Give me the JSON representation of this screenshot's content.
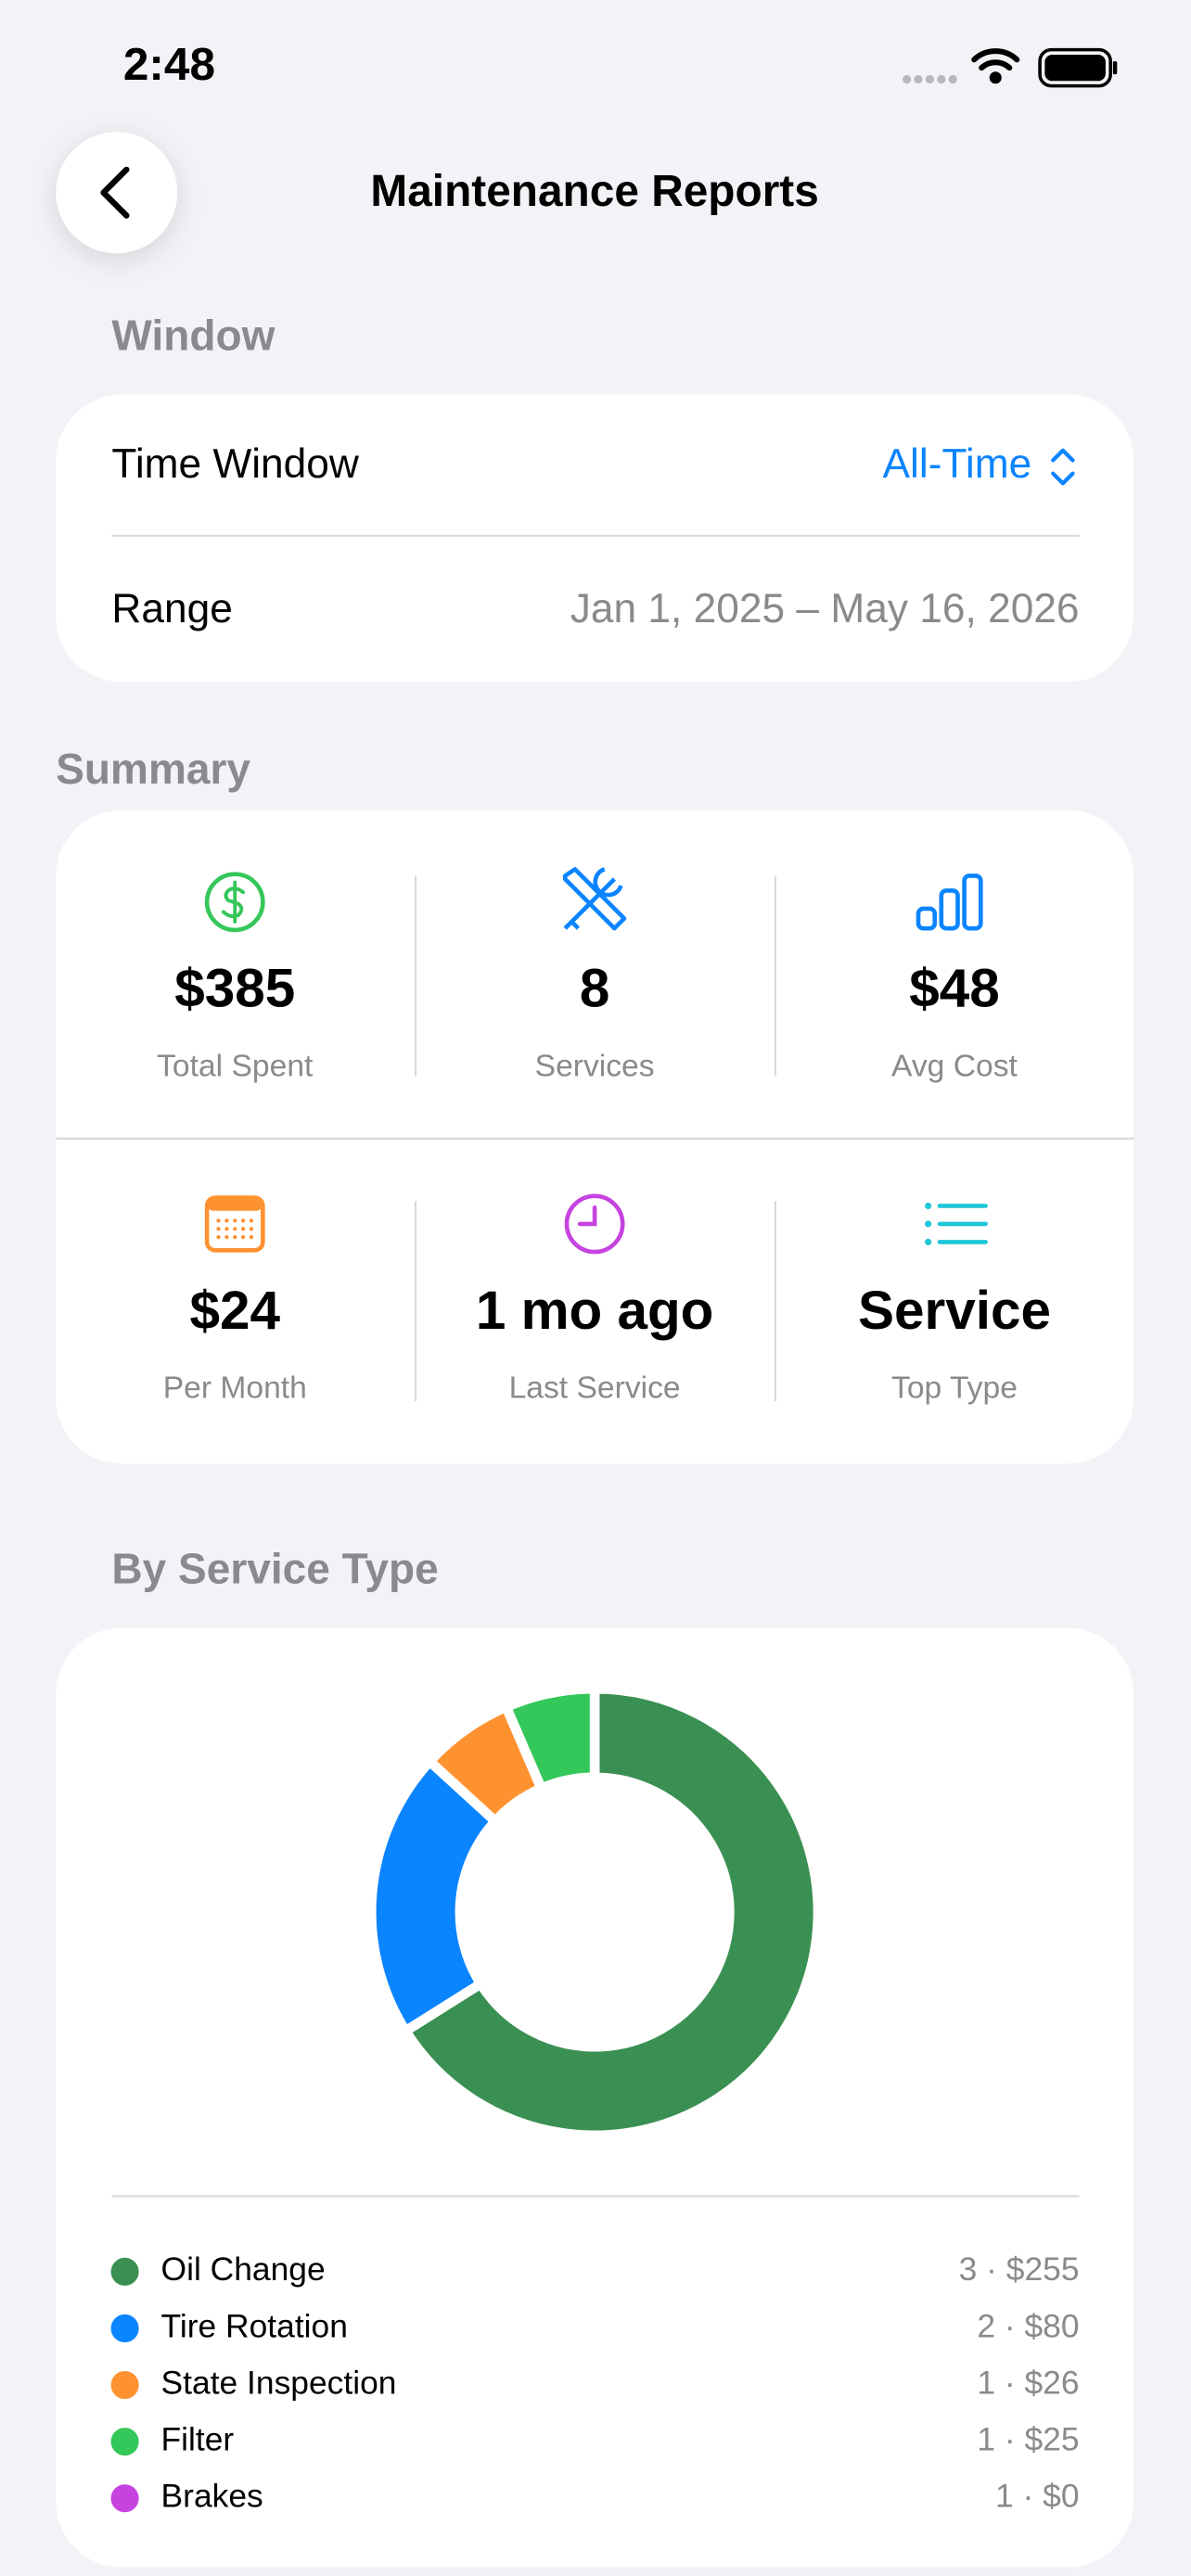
{
  "status_bar": {
    "time": "2:48"
  },
  "header": {
    "title": "Maintenance Reports"
  },
  "window": {
    "heading": "Window",
    "rows": [
      {
        "label": "Time Window",
        "value": "All-Time"
      },
      {
        "label": "Range",
        "value": "Jan 1, 2025 – May 16, 2026"
      }
    ]
  },
  "summary": {
    "heading": "Summary",
    "tiles": [
      {
        "value": "$385",
        "label": "Total Spent",
        "color": "#34c759"
      },
      {
        "value": "8",
        "label": "Services",
        "color": "#0a84ff"
      },
      {
        "value": "$48",
        "label": "Avg Cost",
        "color": "#0a84ff"
      },
      {
        "value": "$24",
        "label": "Per Month",
        "color": "#ff9230"
      },
      {
        "value": "1 mo ago",
        "label": "Last Service",
        "color": "#c643e0"
      },
      {
        "value": "Service",
        "label": "Top Type",
        "color": "#1fc6d8"
      }
    ]
  },
  "chart_data": {
    "type": "pie",
    "title": "By Service Type",
    "categories": [
      "Oil Change",
      "Tire Rotation",
      "State Inspection",
      "Filter",
      "Brakes"
    ],
    "values": [
      255,
      80,
      26,
      25,
      0
    ],
    "value_labels": [
      "3 · $255",
      "2 · $80",
      "1 · $26",
      "1 · $25",
      "1 · $0"
    ],
    "colors": [
      "#3a8f52",
      "#0a84ff",
      "#ff9230",
      "#34c759",
      "#c643e0"
    ]
  }
}
